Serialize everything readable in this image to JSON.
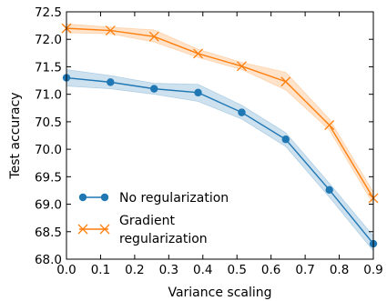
{
  "chart_data": {
    "type": "line",
    "title": "",
    "xlabel": "Variance scaling",
    "ylabel": "Test accuracy",
    "xlim": [
      0.0,
      0.9
    ],
    "ylim": [
      68.0,
      72.5
    ],
    "xticks": [
      "0.0",
      "0.1",
      "0.2",
      "0.3",
      "0.4",
      "0.5",
      "0.6",
      "0.7",
      "0.8",
      "0.9"
    ],
    "yticks": [
      "68.0",
      "68.5",
      "69.0",
      "69.5",
      "70.0",
      "70.5",
      "71.0",
      "71.5",
      "72.0",
      "72.5"
    ],
    "grid": false,
    "legend_position": "lower-left",
    "series": [
      {
        "name": "No regularization",
        "color": "#1f77b4",
        "marker": "circle",
        "x": [
          0.0,
          0.129,
          0.257,
          0.386,
          0.514,
          0.643,
          0.771,
          0.9
        ],
        "y": [
          71.3,
          71.22,
          71.1,
          71.03,
          70.67,
          70.18,
          69.26,
          68.28
        ],
        "band_low": [
          71.15,
          71.1,
          71.0,
          70.87,
          70.55,
          70.05,
          69.13,
          68.15
        ],
        "band_high": [
          71.45,
          71.34,
          71.2,
          71.18,
          70.8,
          70.3,
          69.38,
          68.42
        ]
      },
      {
        "name": "Gradient regularization",
        "legend_lines": [
          "Gradient",
          "regularization"
        ],
        "color": "#ff7f0e",
        "marker": "x",
        "x": [
          0.0,
          0.129,
          0.257,
          0.386,
          0.514,
          0.643,
          0.771,
          0.9
        ],
        "y": [
          72.2,
          72.16,
          72.05,
          71.74,
          71.51,
          71.23,
          70.44,
          69.11
        ],
        "band_low": [
          72.12,
          72.1,
          71.95,
          71.67,
          71.45,
          71.08,
          70.35,
          69.0
        ],
        "band_high": [
          72.28,
          72.22,
          72.17,
          71.82,
          71.58,
          71.4,
          70.55,
          69.22
        ]
      }
    ]
  }
}
